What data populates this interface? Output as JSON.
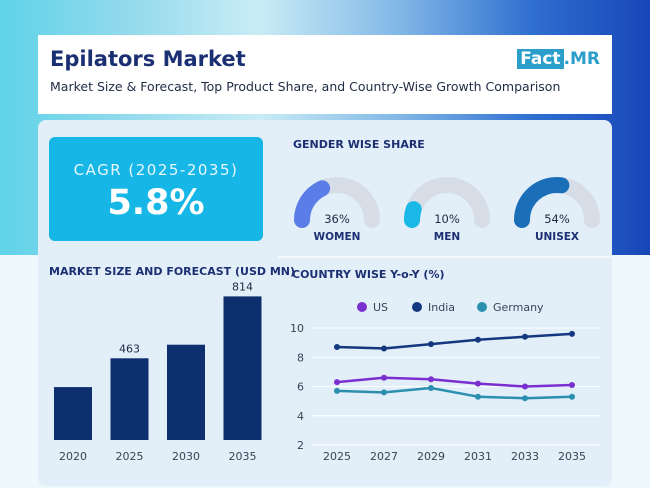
{
  "header": {
    "title": "Epilators Market",
    "subtitle": "Market Size & Forecast, Top Product Share, and Country-Wise Growth Comparison",
    "logo_fact": "Fact",
    "logo_mr": ".MR"
  },
  "cagr": {
    "label": "CAGR (2025-2035)",
    "value": "5.8%"
  },
  "gender": {
    "title": "GENDER WISE SHARE",
    "items": [
      {
        "label": "WOMEN",
        "value": 36,
        "display": "36%",
        "color": "#5b7de8"
      },
      {
        "label": "MEN",
        "value": 10,
        "display": "10%",
        "color": "#1ab8e6"
      },
      {
        "label": "UNISEX",
        "value": 54,
        "display": "54%",
        "color": "#1b6fb8"
      }
    ],
    "track_color": "#d6dde6"
  },
  "chart_data": [
    {
      "type": "bar",
      "title": "MARKET SIZE AND FORECAST (USD MN)",
      "categories": [
        "2020",
        "2025",
        "2030",
        "2035"
      ],
      "values": [
        300,
        463,
        540,
        814
      ],
      "data_labels": [
        "",
        "463",
        "",
        "814"
      ],
      "color": "#0d2f6e",
      "ylim": [
        0,
        850
      ]
    },
    {
      "type": "line",
      "title": "COUNTRY WISE Y-o-Y (%)",
      "x": [
        "2025",
        "2027",
        "2029",
        "2031",
        "2033",
        "2035"
      ],
      "yticks": [
        2,
        4,
        6,
        8,
        10
      ],
      "ylim": [
        2,
        10
      ],
      "grid": true,
      "legend": "top",
      "series": [
        {
          "name": "US",
          "color": "#7a2fd0",
          "values": [
            6.3,
            6.6,
            6.5,
            6.2,
            6.0,
            6.1
          ]
        },
        {
          "name": "India",
          "color": "#14387f",
          "values": [
            8.7,
            8.6,
            8.9,
            9.2,
            9.4,
            9.6
          ]
        },
        {
          "name": "Germany",
          "color": "#2b8fb0",
          "values": [
            5.7,
            5.6,
            5.9,
            5.3,
            5.2,
            5.3
          ]
        }
      ]
    }
  ]
}
